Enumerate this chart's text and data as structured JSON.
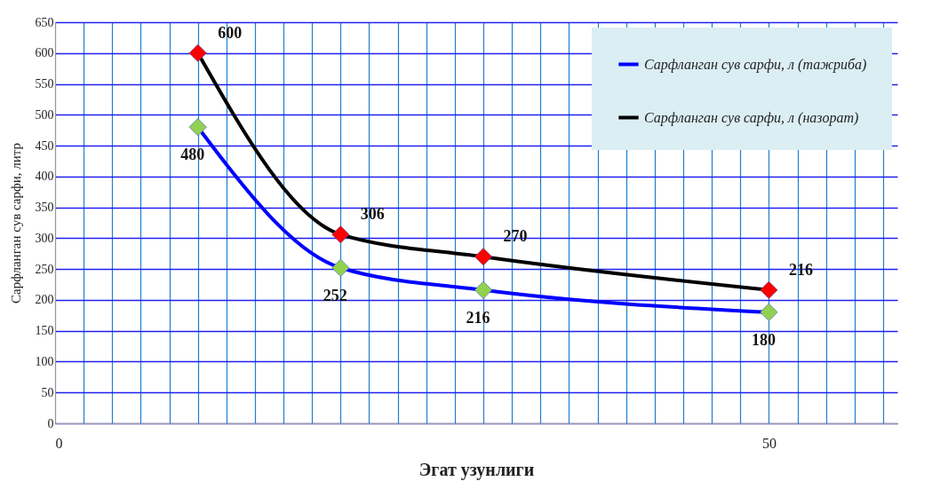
{
  "chart_data": {
    "type": "line",
    "xlabel": "Эгат узунлиги",
    "ylabel": "Сарфланган сув сарфи, литр",
    "x": [
      10,
      20,
      30,
      50
    ],
    "series": [
      {
        "name": "Сарфланган сув сарфи, л (тажриба)",
        "color": "#0000ff",
        "colors": [
          "#92d050",
          "#92d050",
          "#92d050",
          "#92d050"
        ],
        "values": [
          480,
          252,
          216,
          180
        ]
      },
      {
        "name": "Сарфланган сув сарфи, л (назорат)",
        "color": "#000000",
        "colors": [
          "#ff0000",
          "#ff0000",
          "#ff0000",
          "#ff0000"
        ],
        "values": [
          600,
          306,
          270,
          216
        ]
      }
    ],
    "xlim": [
      0,
      59
    ],
    "ylim": [
      0,
      650
    ],
    "xticks": [
      0,
      {
        "value": 2,
        "label": null
      },
      {
        "value": 4,
        "label": null
      },
      {
        "value": 6,
        "label": null
      },
      {
        "value": 8,
        "label": null
      },
      {
        "value": 10,
        "label": null
      },
      {
        "value": 12,
        "label": null
      },
      {
        "value": 14,
        "label": null
      },
      {
        "value": 16,
        "label": null
      },
      {
        "value": 18,
        "label": null
      },
      {
        "value": 20,
        "label": null
      },
      {
        "value": 22,
        "label": null
      },
      {
        "value": 24,
        "label": null
      },
      {
        "value": 26,
        "label": null
      },
      {
        "value": 28,
        "label": null
      },
      {
        "value": 30,
        "label": null
      },
      {
        "value": 32,
        "label": null
      },
      {
        "value": 34,
        "label": null
      },
      {
        "value": 36,
        "label": null
      },
      {
        "value": 38,
        "label": null
      },
      {
        "value": 40,
        "label": null
      },
      {
        "value": 42,
        "label": null
      },
      {
        "value": 44,
        "label": null
      },
      {
        "value": 46,
        "label": null
      },
      {
        "value": 48,
        "label": null
      },
      50,
      {
        "value": 52,
        "label": null
      },
      {
        "value": 54,
        "label": null
      },
      {
        "value": 56,
        "label": null
      },
      {
        "value": 58,
        "label": null
      }
    ],
    "yticks": [
      0,
      50,
      100,
      150,
      200,
      250,
      300,
      350,
      400,
      450,
      500,
      550,
      600,
      650
    ],
    "grid": true,
    "legend": "top right",
    "marker": "diamond",
    "line_style": "solid",
    "data_labels": true
  }
}
